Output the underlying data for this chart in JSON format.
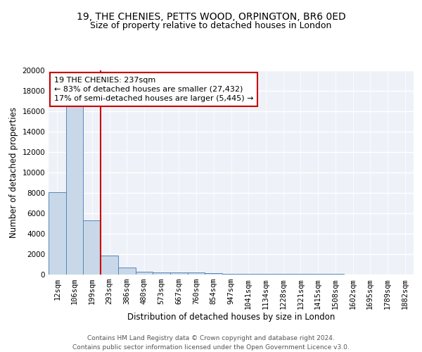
{
  "title1": "19, THE CHENIES, PETTS WOOD, ORPINGTON, BR6 0ED",
  "title2": "Size of property relative to detached houses in London",
  "xlabel": "Distribution of detached houses by size in London",
  "ylabel": "Number of detached properties",
  "categories": [
    "12sqm",
    "106sqm",
    "199sqm",
    "293sqm",
    "386sqm",
    "480sqm",
    "573sqm",
    "667sqm",
    "760sqm",
    "854sqm",
    "947sqm",
    "1041sqm",
    "1134sqm",
    "1228sqm",
    "1321sqm",
    "1415sqm",
    "1508sqm",
    "1602sqm",
    "1695sqm",
    "1789sqm",
    "1882sqm"
  ],
  "values": [
    8100,
    16500,
    5300,
    1850,
    700,
    300,
    230,
    200,
    180,
    130,
    100,
    80,
    70,
    60,
    50,
    40,
    35,
    30,
    25,
    20,
    15
  ],
  "bar_color": "#c8d8e8",
  "bar_edge_color": "#5588bb",
  "red_line_x": 2,
  "red_line_color": "#cc0000",
  "annotation_text": "19 THE CHENIES: 237sqm\n← 83% of detached houses are smaller (27,432)\n17% of semi-detached houses are larger (5,445) →",
  "annotation_box_color": "white",
  "annotation_box_edge_color": "#cc0000",
  "ylim": [
    0,
    20000
  ],
  "yticks": [
    0,
    2000,
    4000,
    6000,
    8000,
    10000,
    12000,
    14000,
    16000,
    18000,
    20000
  ],
  "background_color": "#eef2f8",
  "grid_color": "white",
  "footer_text": "Contains HM Land Registry data © Crown copyright and database right 2024.\nContains public sector information licensed under the Open Government Licence v3.0.",
  "title1_fontsize": 10,
  "title2_fontsize": 9,
  "xlabel_fontsize": 8.5,
  "ylabel_fontsize": 8.5,
  "tick_fontsize": 7.5,
  "annotation_fontsize": 8,
  "footer_fontsize": 6.5
}
